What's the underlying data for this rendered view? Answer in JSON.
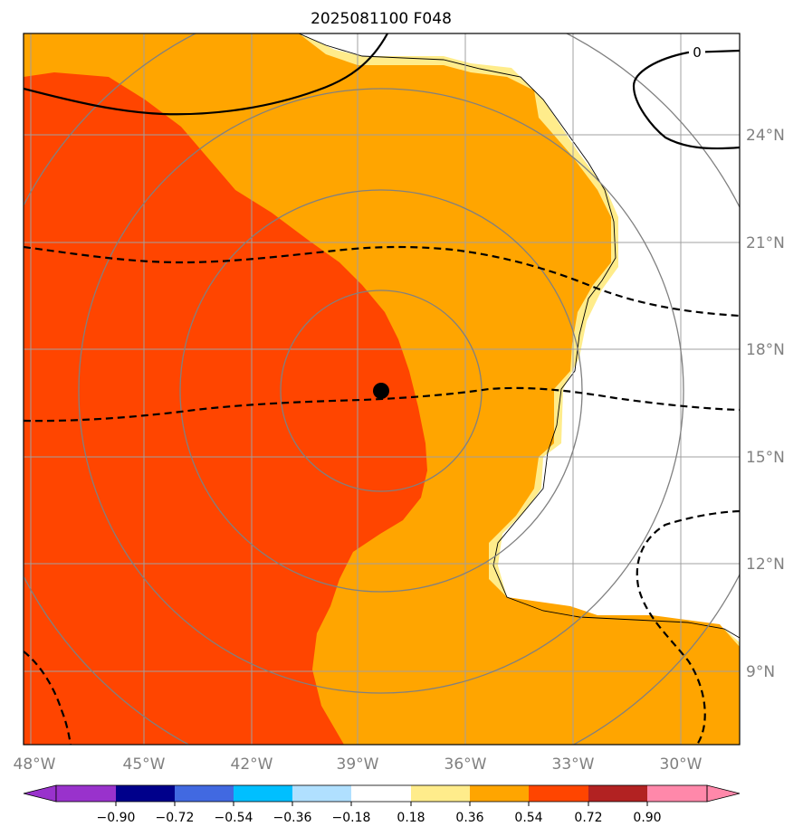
{
  "title": "2025081100 F048",
  "lat_labels": [
    "24°N",
    "21°N",
    "18°N",
    "15°N",
    "12°N",
    "9°N"
  ],
  "lon_labels": [
    "48°W",
    "45°W",
    "42°W",
    "39°W",
    "36°W",
    "33°W",
    "30°W"
  ],
  "contour_label": "0",
  "colorbar": {
    "tick_labels": [
      "−0.90",
      "−0.72",
      "−0.54",
      "−0.36",
      "−0.18",
      "0.18",
      "0.36",
      "0.54",
      "0.72",
      "0.90"
    ],
    "colors": [
      "#9932cc",
      "#00008b",
      "#4169e1",
      "#00bfff",
      "#b0e0ff",
      "#ffffff",
      "#ffec8b",
      "#ffa500",
      "#ff4500",
      "#b22222",
      "#ff88aa"
    ]
  },
  "fill_colors": {
    "orange": "#ffa500",
    "red_orange": "#ff4500",
    "light_yellow": "#ffec8b"
  },
  "storm_center": {
    "lon": -38.3,
    "lat": 16.8
  }
}
